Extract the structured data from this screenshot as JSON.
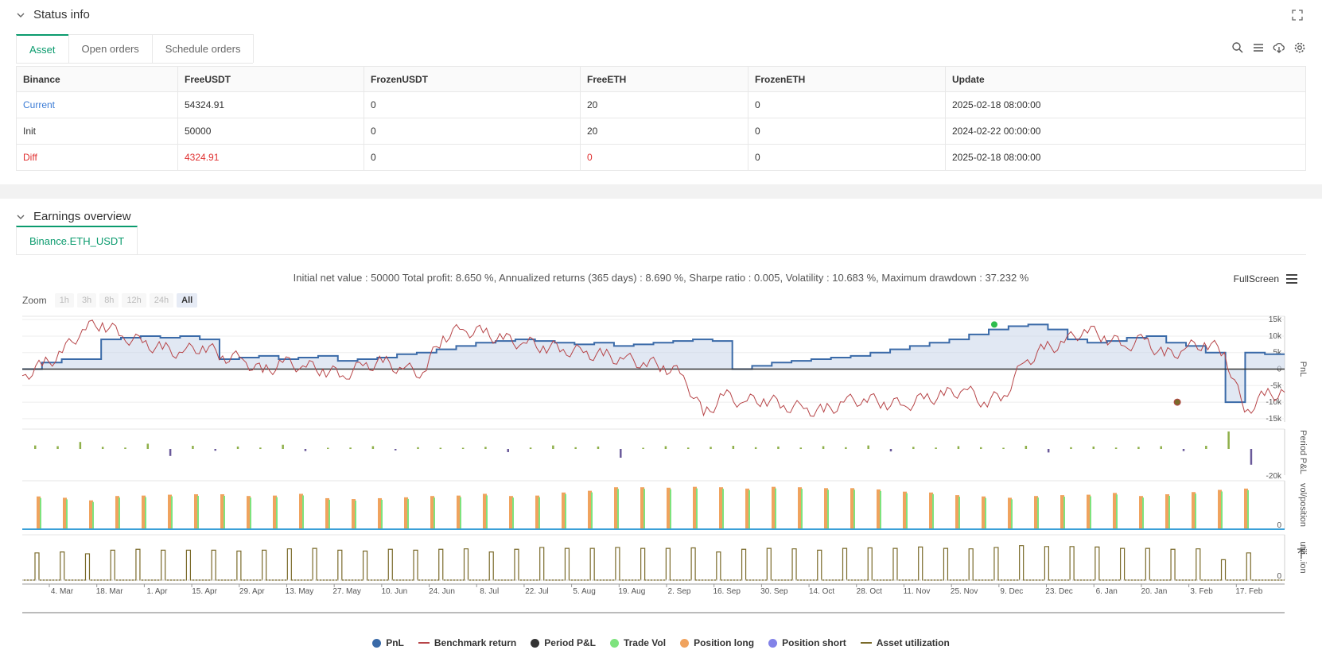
{
  "status": {
    "title": "Status info",
    "tabs": [
      {
        "label": "Asset"
      },
      {
        "label": "Open orders"
      },
      {
        "label": "Schedule orders"
      }
    ],
    "table": {
      "headers": [
        "Binance",
        "FreeUSDT",
        "FrozenUSDT",
        "FreeETH",
        "FrozenETH",
        "Update"
      ],
      "rows": [
        [
          "Current",
          "54324.91",
          "0",
          "20",
          "0",
          "2025-02-18 08:00:00"
        ],
        [
          "Init",
          "50000",
          "0",
          "20",
          "0",
          "2024-02-22 00:00:00"
        ],
        [
          "Diff",
          "4324.91",
          "0",
          "0",
          "0",
          "2025-02-18 08:00:00"
        ]
      ]
    }
  },
  "earnings": {
    "title": "Earnings overview",
    "tab": "Binance.ETH_USDT",
    "summary": "Initial net value : 50000 Total profit: 8.650 %, Annualized returns (365 days) : 8.690 %, Sharpe ratio : 0.005, Volatility : 10.683 %, Maximum drawdown : 37.232 %",
    "fullscreen": "FullScreen",
    "zoom_label": "Zoom",
    "zoom_buttons": [
      "1h",
      "3h",
      "8h",
      "12h",
      "24h",
      "All"
    ]
  },
  "chart_data": {
    "type": "line",
    "x_ticks": [
      "4. Mar",
      "18. Mar",
      "1. Apr",
      "15. Apr",
      "29. Apr",
      "13. May",
      "27. May",
      "10. Jun",
      "24. Jun",
      "8. Jul",
      "22. Jul",
      "5. Aug",
      "19. Aug",
      "2. Sep",
      "16. Sep",
      "30. Sep",
      "14. Oct",
      "28. Oct",
      "11. Nov",
      "25. Nov",
      "9. Dec",
      "23. Dec",
      "6. Jan",
      "20. Jan",
      "3. Feb",
      "17. Feb"
    ],
    "pnl_axis": {
      "ticks": [
        "15k",
        "10k",
        "5k",
        "0",
        "-5k",
        "-10k",
        "-15k"
      ],
      "label": "PnL"
    },
    "period_axis": {
      "ticks": [
        "-20k"
      ],
      "label": "Period P&L"
    },
    "vol_axis": {
      "ticks": [
        "0"
      ],
      "label": "vol/position"
    },
    "util_axis": {
      "ticks": [
        "0"
      ],
      "label": "utili...ion"
    },
    "pnl_steps": [
      0,
      2000,
      3000,
      3000,
      9000,
      9500,
      10000,
      9500,
      10000,
      9000,
      3000,
      3500,
      4000,
      3000,
      3500,
      4000,
      2500,
      3000,
      3500,
      4500,
      5000,
      6000,
      7000,
      8000,
      8500,
      9000,
      8500,
      8000,
      7500,
      8000,
      7000,
      7500,
      8000,
      8500,
      9000,
      8500,
      0,
      1000,
      2000,
      2500,
      3000,
      3500,
      4000,
      5000,
      6000,
      7000,
      8000,
      9000,
      10500,
      12000,
      13000,
      13500,
      12000,
      9000,
      8000,
      8500,
      9500,
      10000,
      8000,
      7000,
      5000,
      -10000,
      5000,
      4500
    ],
    "benchmark": [
      -2000,
      1000,
      5000,
      12000,
      14000,
      10000,
      8000,
      6000,
      5000,
      7000,
      4000,
      3000,
      -1000,
      2000,
      1000,
      0,
      -2000,
      1000,
      2000,
      0,
      -1000,
      10000,
      12000,
      11000,
      9000,
      8000,
      7000,
      6000,
      5000,
      4000,
      3000,
      2000,
      1000,
      -2000,
      -14000,
      -8000,
      -10000,
      -9000,
      -11000,
      -12000,
      -13000,
      -10000,
      -9000,
      -10000,
      -11000,
      -9000,
      -8000,
      -6000,
      -10000,
      -8000,
      2000,
      6000,
      8000,
      12000,
      10000,
      7000,
      9000,
      4000,
      6000,
      8000,
      5000,
      -13000,
      -8000,
      -7000
    ],
    "period_pnl": [
      1000,
      800,
      2000,
      600,
      400,
      1500,
      -2000,
      900,
      -500,
      700,
      400,
      1200,
      -600,
      300,
      400,
      800,
      -400,
      500,
      300,
      200,
      600,
      -900,
      400,
      1000,
      500,
      700,
      -2500,
      300,
      800,
      400,
      600,
      900,
      500,
      700,
      400,
      800,
      500,
      1000,
      -700,
      600,
      400,
      800,
      500,
      300,
      900,
      -1000,
      500,
      700,
      400,
      600,
      800,
      -600,
      900,
      5000,
      -4500
    ],
    "trade_vol": [
      0.75,
      0.72,
      0.66,
      0.76,
      0.77,
      0.79,
      0.8,
      0.8,
      0.76,
      0.77,
      0.81,
      0.71,
      0.69,
      0.71,
      0.73,
      0.76,
      0.77,
      0.81,
      0.76,
      0.77,
      0.84,
      0.88,
      0.96,
      0.96,
      0.95,
      0.97,
      0.96,
      0.93,
      0.97,
      0.96,
      0.94,
      0.94,
      0.91,
      0.86,
      0.84,
      0.78,
      0.75,
      0.72,
      0.76,
      0.78,
      0.79,
      0.83,
      0.76,
      0.8,
      0.85,
      0.9,
      0.93
    ],
    "utilization": [
      0.6,
      0.62,
      0.58,
      0.66,
      0.68,
      0.66,
      0.66,
      0.66,
      0.64,
      0.66,
      0.69,
      0.7,
      0.66,
      0.64,
      0.68,
      0.66,
      0.68,
      0.69,
      0.62,
      0.68,
      0.72,
      0.7,
      0.7,
      0.72,
      0.7,
      0.7,
      0.71,
      0.62,
      0.68,
      0.7,
      0.69,
      0.66,
      0.7,
      0.71,
      0.7,
      0.73,
      0.7,
      0.69,
      0.72,
      0.76,
      0.74,
      0.74,
      0.73,
      0.7,
      0.7,
      0.68,
      0.69,
      0.45,
      0.6
    ],
    "legend": [
      {
        "name": "PnL",
        "color": "#3a6aa8",
        "kind": "dot"
      },
      {
        "name": "Benchmark return",
        "color": "#b74548",
        "kind": "line"
      },
      {
        "name": "Period P&L",
        "color": "#333333",
        "kind": "dot"
      },
      {
        "name": "Trade Vol",
        "color": "#7ee37e",
        "kind": "dot"
      },
      {
        "name": "Position long",
        "color": "#f0a35e",
        "kind": "dot"
      },
      {
        "name": "Position short",
        "color": "#8282e8",
        "kind": "dot"
      },
      {
        "name": "Asset utilization",
        "color": "#7a6a2a",
        "kind": "line"
      }
    ]
  }
}
